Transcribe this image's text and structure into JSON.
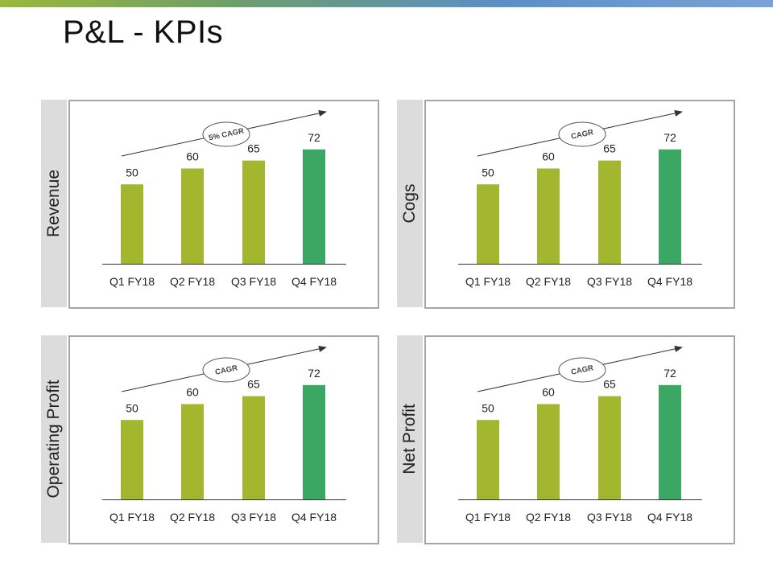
{
  "page": {
    "title": "P&L - KPIs"
  },
  "colors": {
    "bar": "#a2b72e",
    "bar_highlight": "#3aa862",
    "side_label_bg": "#dcdcdc",
    "frame": "#a6a6a6"
  },
  "chart_data": [
    {
      "type": "bar",
      "title": "Revenue",
      "categories": [
        "Q1 FY18",
        "Q2 FY18",
        "Q3 FY18",
        "Q4 FY18"
      ],
      "values": [
        50,
        60,
        65,
        72
      ],
      "highlight_index": 3,
      "annotation": "5% CAGR",
      "ylim": [
        0,
        80
      ]
    },
    {
      "type": "bar",
      "title": "Cogs",
      "categories": [
        "Q1 FY18",
        "Q2 FY18",
        "Q3 FY18",
        "Q4 FY18"
      ],
      "values": [
        50,
        60,
        65,
        72
      ],
      "highlight_index": 3,
      "annotation": "CAGR",
      "ylim": [
        0,
        80
      ]
    },
    {
      "type": "bar",
      "title": "Operating Profit",
      "categories": [
        "Q1 FY18",
        "Q2 FY18",
        "Q3 FY18",
        "Q4 FY18"
      ],
      "values": [
        50,
        60,
        65,
        72
      ],
      "highlight_index": 3,
      "annotation": "CAGR",
      "ylim": [
        0,
        80
      ]
    },
    {
      "type": "bar",
      "title": "Net Profit",
      "categories": [
        "Q1 FY18",
        "Q2 FY18",
        "Q3 FY18",
        "Q4 FY18"
      ],
      "values": [
        50,
        60,
        65,
        72
      ],
      "highlight_index": 3,
      "annotation": "CAGR",
      "ylim": [
        0,
        80
      ]
    }
  ]
}
